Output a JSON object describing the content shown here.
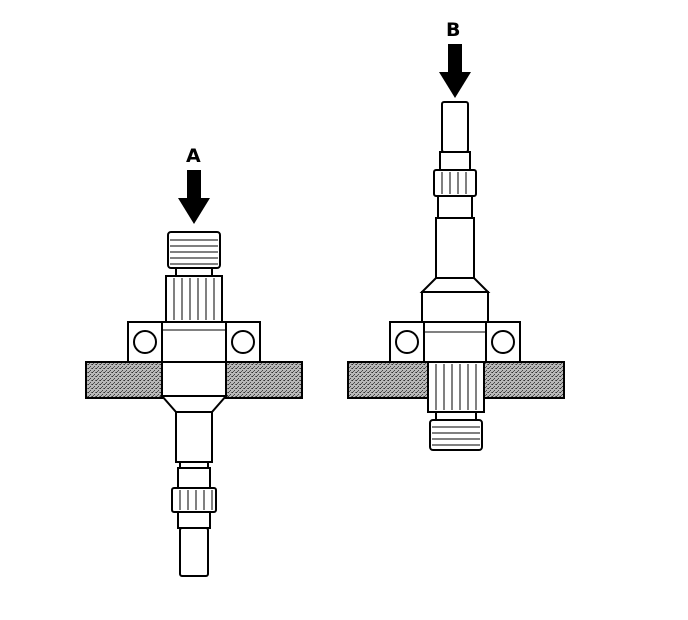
{
  "labels": {
    "a": "A",
    "b": "B"
  },
  "colors": {
    "ink": "#000000",
    "paper": "#ffffff",
    "support_block": "#8c8c8c"
  },
  "icons": {
    "press_arrow": "down-arrow-icon"
  }
}
